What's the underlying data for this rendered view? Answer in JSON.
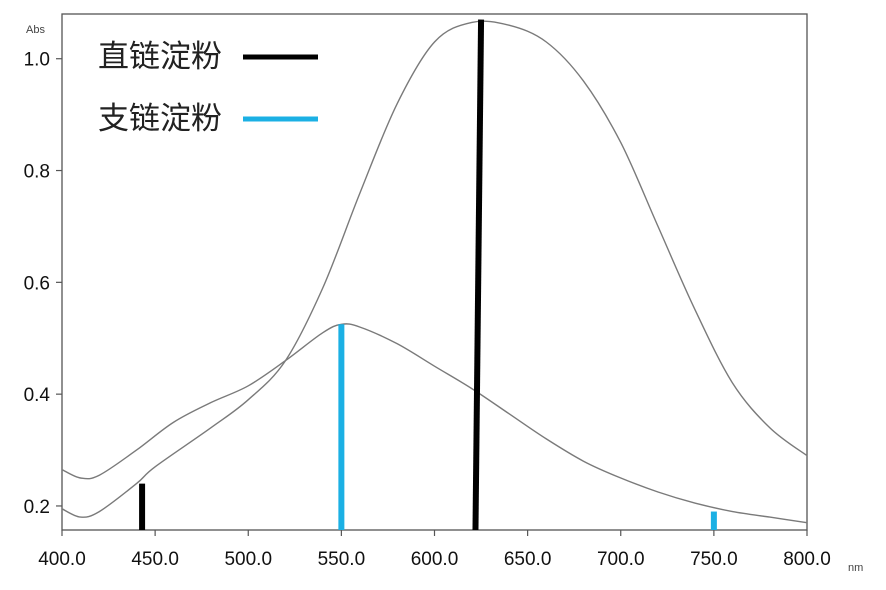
{
  "chart_data": {
    "type": "line",
    "title": "",
    "xlabel": "nm",
    "ylabel": "Abs",
    "xlim": [
      400,
      800
    ],
    "ylim": [
      0.157,
      1.08
    ],
    "x_ticks": [
      "400.0",
      "450.0",
      "500.0",
      "550.0",
      "600.0",
      "650.0",
      "700.0",
      "750.0",
      "800.0"
    ],
    "y_ticks": [
      "0.2",
      "0.4",
      "0.6",
      "0.8",
      "1.0"
    ],
    "grid": false,
    "legend_position": "top-left",
    "series": [
      {
        "name": "直链淀粉",
        "legend_color": "#000000",
        "x": [
          400,
          410,
          420,
          440,
          450,
          480,
          500,
          520,
          540,
          560,
          580,
          600,
          620,
          640,
          660,
          680,
          700,
          720,
          740,
          760,
          780,
          800
        ],
        "y": [
          0.195,
          0.18,
          0.19,
          0.24,
          0.27,
          0.34,
          0.39,
          0.46,
          0.59,
          0.76,
          0.92,
          1.03,
          1.065,
          1.06,
          1.03,
          0.96,
          0.85,
          0.7,
          0.55,
          0.42,
          0.34,
          0.29
        ]
      },
      {
        "name": "支链淀粉",
        "legend_color": "#1bb0e4",
        "x": [
          400,
          410,
          420,
          440,
          460,
          480,
          500,
          520,
          540,
          550,
          560,
          580,
          600,
          620,
          640,
          660,
          680,
          700,
          720,
          740,
          760,
          780,
          800
        ],
        "y": [
          0.265,
          0.25,
          0.255,
          0.3,
          0.35,
          0.385,
          0.415,
          0.46,
          0.51,
          0.525,
          0.52,
          0.49,
          0.45,
          0.41,
          0.365,
          0.32,
          0.28,
          0.25,
          0.225,
          0.205,
          0.19,
          0.18,
          0.17
        ]
      }
    ],
    "markers": [
      {
        "series": "直链淀粉",
        "color": "#000000",
        "x1": 443,
        "y1": 0.157,
        "x2": 443,
        "y2": 0.24
      },
      {
        "series": "支链淀粉",
        "color": "#1bb0e4",
        "x1": 550,
        "y1": 0.157,
        "x2": 550,
        "y2": 0.525
      },
      {
        "series": "直链淀粉",
        "color": "#000000",
        "x1": 622,
        "y1": 0.157,
        "x2": 625,
        "y2": 1.07
      },
      {
        "series": "支链淀粉",
        "color": "#1bb0e4",
        "x1": 750,
        "y1": 0.157,
        "x2": 750,
        "y2": 0.19
      }
    ]
  }
}
